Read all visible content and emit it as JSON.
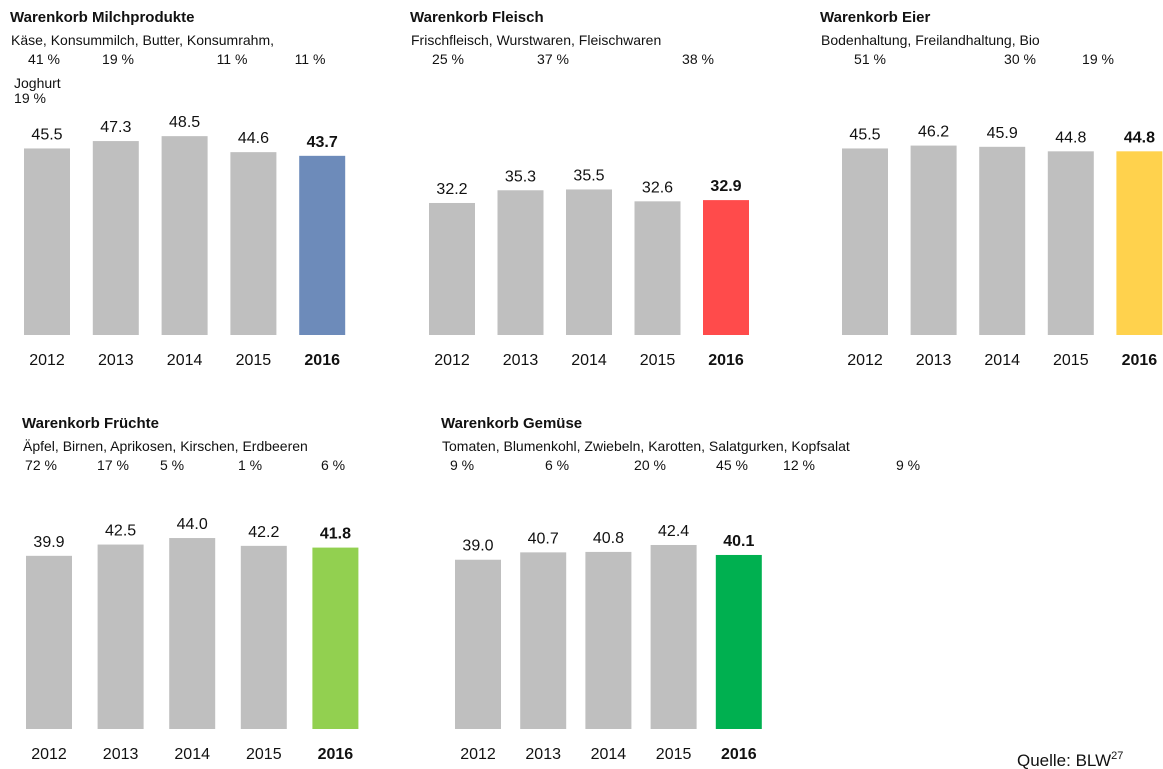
{
  "chart_data": [
    {
      "type": "bar",
      "title": "Warenkorb Milchprodukte",
      "subtitle": "Käse, Konsummilch, Butter, Konsumrahm,",
      "shares": [
        "41 %",
        "19 %",
        "11 %",
        "11 %"
      ],
      "subtitle2": "Joghurt",
      "shares2": [
        "19 %"
      ],
      "categories": [
        "2012",
        "2013",
        "2014",
        "2015",
        "2016"
      ],
      "values": [
        45.5,
        47.3,
        48.5,
        44.6,
        43.7
      ],
      "value_labels": [
        "45.5",
        "47.3",
        "48.5",
        "44.6",
        "43.7"
      ],
      "colors": [
        "#bfbfbf",
        "#bfbfbf",
        "#bfbfbf",
        "#bfbfbf",
        "#6d8bba"
      ],
      "ylim": [
        0,
        55
      ]
    },
    {
      "type": "bar",
      "title": "Warenkorb Fleisch",
      "subtitle": "Frischfleisch, Wurstwaren, Fleischwaren",
      "shares": [
        "25 %",
        "37 %",
        "38 %"
      ],
      "categories": [
        "2012",
        "2013",
        "2014",
        "2015",
        "2016"
      ],
      "values": [
        32.2,
        35.3,
        35.5,
        32.6,
        32.9
      ],
      "value_labels": [
        "32.2",
        "35.3",
        "35.5",
        "32.6",
        "32.9"
      ],
      "colors": [
        "#bfbfbf",
        "#bfbfbf",
        "#bfbfbf",
        "#bfbfbf",
        "#ff4b4b"
      ],
      "ylim": [
        0,
        55
      ]
    },
    {
      "type": "bar",
      "title": "Warenkorb Eier",
      "subtitle": "Bodenhaltung, Freilandhaltung, Bio",
      "shares": [
        "51 %",
        "30 %",
        "19 %"
      ],
      "categories": [
        "2012",
        "2013",
        "2014",
        "2015",
        "2016"
      ],
      "values": [
        45.5,
        46.2,
        45.9,
        44.8,
        44.8
      ],
      "value_labels": [
        "45.5",
        "46.2",
        "45.9",
        "44.8",
        "44.8"
      ],
      "colors": [
        "#bfbfbf",
        "#bfbfbf",
        "#bfbfbf",
        "#bfbfbf",
        "#ffd24d"
      ],
      "ylim": [
        0,
        55
      ]
    },
    {
      "type": "bar",
      "title": "Warenkorb Früchte",
      "subtitle": "Äpfel, Birnen, Aprikosen, Kirschen, Erdbeeren",
      "shares": [
        "72 %",
        "17 %",
        "5 %",
        "1 %",
        "6 %"
      ],
      "categories": [
        "2012",
        "2013",
        "2014",
        "2015",
        "2016"
      ],
      "values": [
        39.9,
        42.5,
        44.0,
        42.2,
        41.8
      ],
      "value_labels": [
        "39.9",
        "42.5",
        "44.0",
        "42.2",
        "41.8"
      ],
      "colors": [
        "#bfbfbf",
        "#bfbfbf",
        "#bfbfbf",
        "#bfbfbf",
        "#92d050"
      ],
      "ylim": [
        0,
        55
      ]
    },
    {
      "type": "bar",
      "title": "Warenkorb Gemüse",
      "subtitle": "Tomaten, Blumenkohl, Zwiebeln, Karotten, Salatgurken, Kopfsalat",
      "shares": [
        "9 %",
        "6 %",
        "20 %",
        "45 %",
        "12 %",
        "9 %"
      ],
      "categories": [
        "2012",
        "2013",
        "2014",
        "2015",
        "2016"
      ],
      "values": [
        39.0,
        40.7,
        40.8,
        42.4,
        40.1
      ],
      "value_labels": [
        "39.0",
        "40.7",
        "40.8",
        "42.4",
        "40.1"
      ],
      "colors": [
        "#bfbfbf",
        "#bfbfbf",
        "#bfbfbf",
        "#bfbfbf",
        "#00b050"
      ],
      "ylim": [
        0,
        55
      ]
    }
  ],
  "source": "Quelle: BLW",
  "source_note": "27"
}
